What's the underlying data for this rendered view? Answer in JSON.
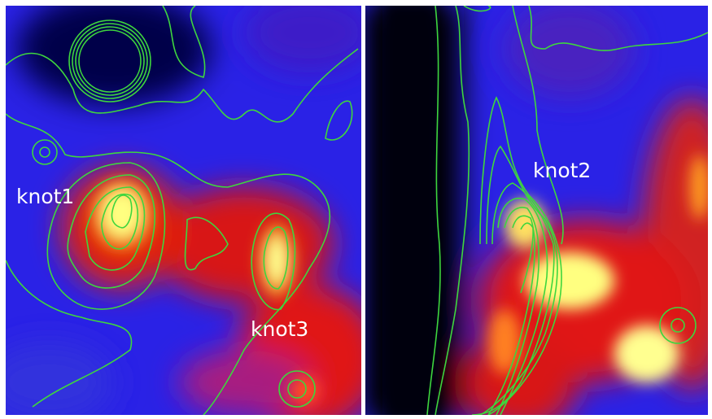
{
  "left_panel": {
    "labels": [
      "knot1",
      "knot3"
    ]
  },
  "right_panel": {
    "labels": [
      "knot2"
    ]
  }
}
